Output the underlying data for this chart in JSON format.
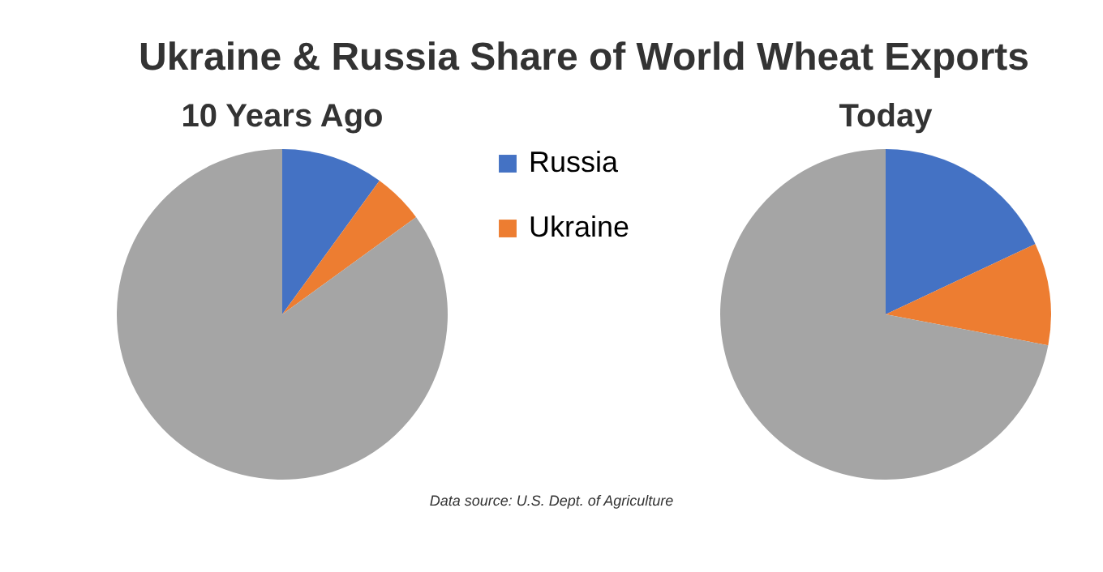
{
  "chart_data": [
    {
      "type": "pie",
      "title": "10 Years Ago",
      "categories": [
        "Russia",
        "Ukraine",
        null
      ],
      "values": [
        10,
        5,
        85
      ],
      "colors": [
        "#4472c4",
        "#ed7d31",
        "#a5a5a5"
      ],
      "legend": "right",
      "annotations": [
        "Ukraine & Russia Share of World Wheat Exports",
        "Data source: U.S. Dept. of Agriculture"
      ]
    },
    {
      "type": "pie",
      "title": "Today",
      "categories": [
        null,
        null,
        null
      ],
      "values": [
        18,
        10,
        72
      ],
      "colors": [
        "#4472c4",
        "#ed7d31",
        "#a5a5a5"
      ]
    }
  ]
}
